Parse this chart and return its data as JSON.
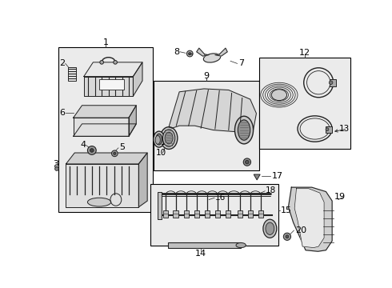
{
  "bg_color": "#ffffff",
  "border_color": "#000000",
  "line_color": "#222222",
  "label_color": "#000000",
  "box_bg": "#ebebeb",
  "lw_main": 0.7,
  "lw_thin": 0.5,
  "lw_thick": 1.2,
  "fs_label": 7.5,
  "fs_num": 8.0
}
